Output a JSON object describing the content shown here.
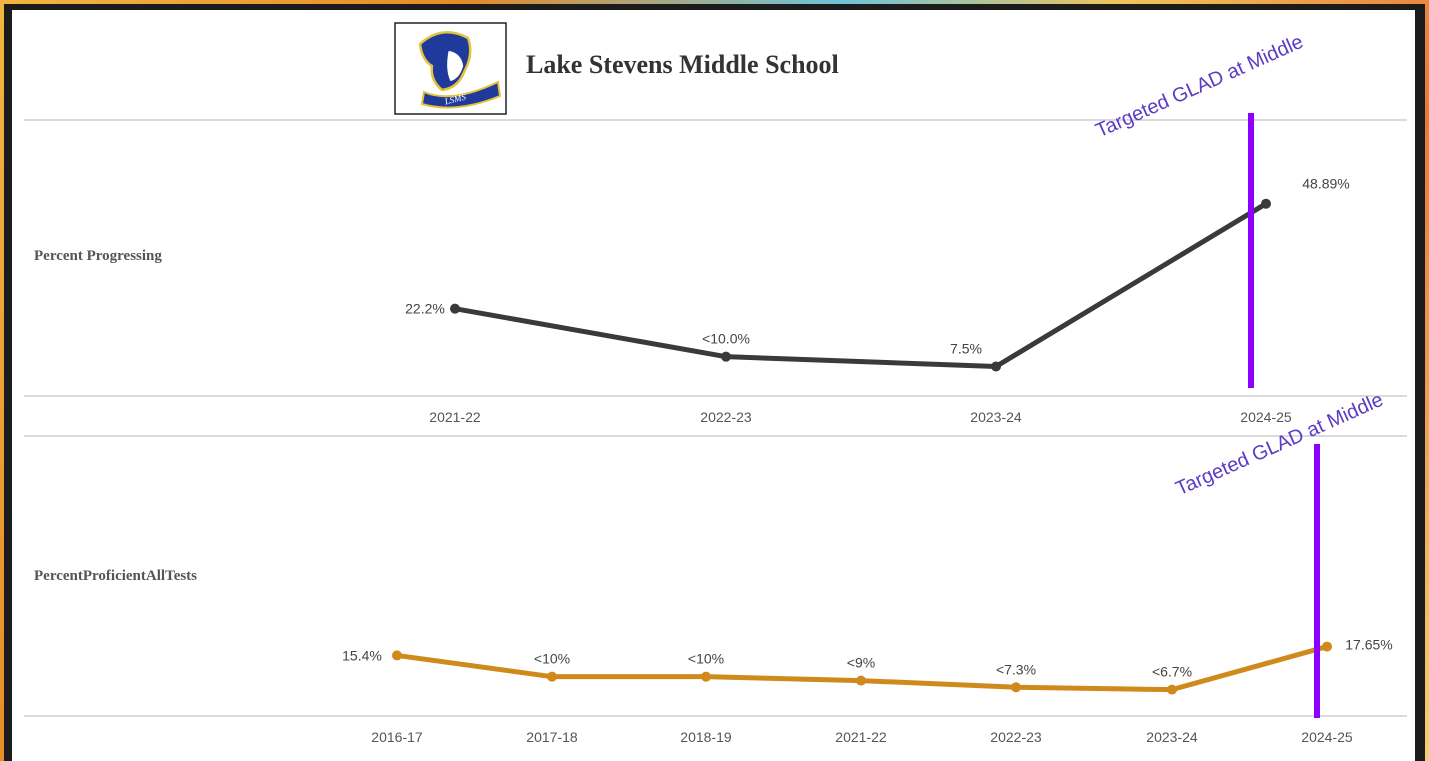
{
  "header": {
    "title": "Lake Stevens Middle School",
    "logo_text": "LSMS"
  },
  "colors": {
    "progressing_line": "#3a3a3a",
    "proficient_line": "#d08a1c",
    "annotation": "#8b00ff",
    "annotation_text": "#5b3cc4",
    "gridline": "#cfcfcf"
  },
  "chart_data": [
    {
      "type": "line",
      "ylabel": "Percent Progressing",
      "categories": [
        "2021-22",
        "2022-23",
        "2023-24",
        "2024-25"
      ],
      "values": [
        22.2,
        10.0,
        7.5,
        48.89
      ],
      "data_labels": [
        "22.2%",
        "<10.0%",
        "7.5%",
        "48.89%"
      ],
      "annotation": {
        "category": "2024-25",
        "text": "Targeted GLAD at Middle"
      }
    },
    {
      "type": "line",
      "ylabel": "PercentProficientAllTests",
      "categories": [
        "2016-17",
        "2017-18",
        "2018-19",
        "2021-22",
        "2022-23",
        "2023-24",
        "2024-25"
      ],
      "values": [
        15.4,
        10,
        10,
        9,
        7.3,
        6.7,
        17.65
      ],
      "data_labels": [
        "15.4%",
        "<10%",
        "<10%",
        "<9%",
        "<7.3%",
        "<6.7%",
        "17.65%"
      ],
      "annotation": {
        "category": "2024-25",
        "text": "Targeted GLAD at Middle"
      }
    }
  ]
}
